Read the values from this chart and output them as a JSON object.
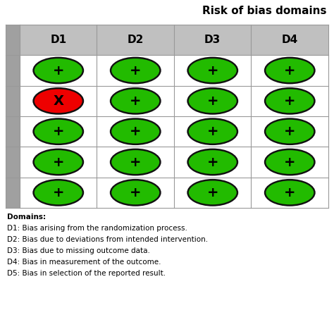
{
  "title": "Risk of bias domains",
  "columns": [
    "D1",
    "D2",
    "D3",
    "D4"
  ],
  "n_rows": 5,
  "n_cols": 4,
  "symbols": [
    [
      "+",
      "+",
      "+",
      "+"
    ],
    [
      "X",
      "+",
      "+",
      "+"
    ],
    [
      "+",
      "+",
      "+",
      "+"
    ],
    [
      "+",
      "+",
      "+",
      "+"
    ],
    [
      "+",
      "+",
      "+",
      "+"
    ]
  ],
  "colors": [
    [
      "green",
      "green",
      "green",
      "green"
    ],
    [
      "red",
      "green",
      "green",
      "green"
    ],
    [
      "green",
      "green",
      "green",
      "green"
    ],
    [
      "green",
      "green",
      "green",
      "green"
    ],
    [
      "green",
      "green",
      "green",
      "green"
    ]
  ],
  "green_color": "#22bb00",
  "red_color": "#ee0000",
  "header_bg": "#c0c0c0",
  "cell_bg": "#ffffff",
  "left_col_bg": "#a0a0a0",
  "grid_color": "#999999",
  "border_color": "#111111",
  "legend_lines": [
    "Domains:",
    "D1: Bias arising from the randomization process.",
    "D2: Bias due to deviations from intended intervention.",
    "D3: Bias due to missing outcome data.",
    "D4: Bias in measurement of the outcome.",
    "D5: Bias in selection of the reported result."
  ],
  "title_fontsize": 11,
  "header_fontsize": 11,
  "symbol_fontsize": 14,
  "legend_fontsize": 7.5
}
